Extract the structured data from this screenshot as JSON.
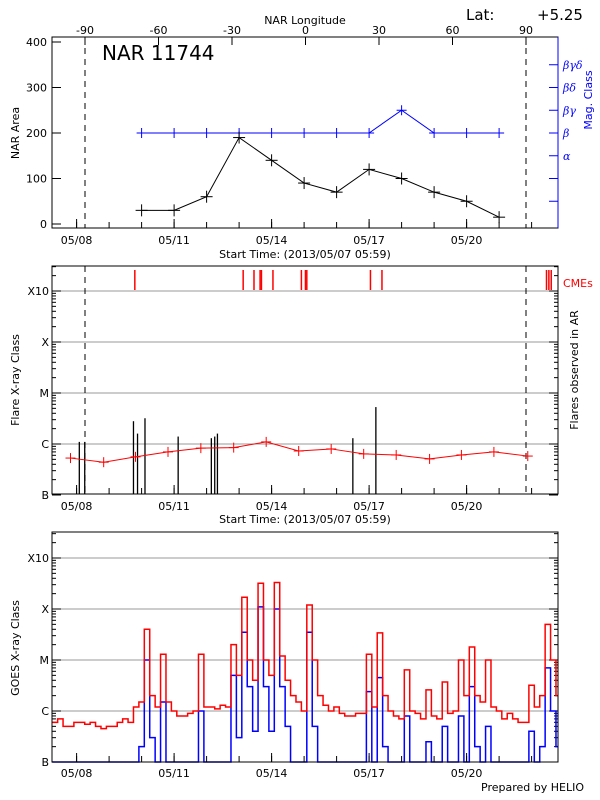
{
  "header": {
    "lat_label": "Lat:",
    "lat_value": "+5.25"
  },
  "footer": {
    "credit": "Prepared by HELIO"
  },
  "colors": {
    "area": "#000000",
    "mag_class": "#0000ff",
    "cme": "#ff0000",
    "background": "#ff0000",
    "flare": "#000000",
    "goes_long": "#ff0000",
    "goes_short": "#0000ff",
    "grid": "#999999"
  },
  "chart_data": [
    {
      "type": "line",
      "title": "NAR 11744",
      "xlabel": "Start Time: (2013/05/07 05:59)",
      "x_top_label": "NAR Longitude",
      "x_top_ticks": [
        "-90",
        "-60",
        "-30",
        "0",
        "30",
        "60",
        "90"
      ],
      "limb_longitudes": [
        -90,
        90
      ],
      "xticks": [
        "05/08",
        "05/11",
        "05/14",
        "05/17",
        "05/20"
      ],
      "ylabel": "NAR Area",
      "ylim": [
        0,
        400
      ],
      "yticks": [
        "0",
        "100",
        "200",
        "300",
        "400"
      ],
      "y2label": "Mag. Class",
      "y2ticks": [
        "α",
        "β",
        "βγ",
        "βδ",
        "βγδ"
      ],
      "dates": [
        "2013-05-10 00:00",
        "2013-05-11 00:00",
        "2013-05-12 00:00",
        "2013-05-13 00:00",
        "2013-05-14 00:00",
        "2013-05-15 00:00",
        "2013-05-16 00:00",
        "2013-05-17 00:00",
        "2013-05-18 00:00",
        "2013-05-19 00:00",
        "2013-05-20 00:00",
        "2013-05-21 00:00"
      ],
      "area": [
        30,
        30,
        60,
        190,
        140,
        90,
        70,
        120,
        100,
        70,
        50,
        15
      ],
      "mag_class": [
        "β",
        "β",
        "β",
        "β",
        "β",
        "β",
        "β",
        "β",
        "βγ",
        "β",
        "β",
        "β"
      ]
    },
    {
      "type": "bar",
      "xlabel": "Start Time: (2013/05/07 05:59)",
      "xticks": [
        "05/08",
        "05/11",
        "05/14",
        "05/17",
        "05/20"
      ],
      "ylabel": "Flare X-ray Class",
      "yticks": [
        "B",
        "C",
        "M",
        "X",
        "X10"
      ],
      "y2label": "Flares observed in AR",
      "cme_label": "CMEs",
      "scale": "log",
      "flares": [
        {
          "time": "2013-05-08 02:00",
          "class": "C1.1"
        },
        {
          "time": "2013-05-08 06:00",
          "class": "C1.1"
        },
        {
          "time": "2013-05-09 18:00",
          "class": "C2.8"
        },
        {
          "time": "2013-05-09 21:00",
          "class": "C1.6"
        },
        {
          "time": "2013-05-10 02:30",
          "class": "C3.2"
        },
        {
          "time": "2013-05-11 03:00",
          "class": "C1.4"
        },
        {
          "time": "2013-05-12 03:30",
          "class": "C1.3"
        },
        {
          "time": "2013-05-12 06:00",
          "class": "C1.4"
        },
        {
          "time": "2013-05-12 08:00",
          "class": "C1.6"
        },
        {
          "time": "2013-05-16 12:00",
          "class": "C1.3"
        },
        {
          "time": "2013-05-17 05:00",
          "class": "C5.3"
        }
      ],
      "cmes": [
        "2013-05-09 19:00",
        "2013-05-13 03:00",
        "2013-05-13 11:00",
        "2013-05-13 15:30",
        "2013-05-13 16:30",
        "2013-05-14 01:00",
        "2013-05-14 22:00",
        "2013-05-15 01:00",
        "2013-05-15 02:00",
        "2013-05-17 01:00",
        "2013-05-17 09:30",
        "2013-05-22 11:00",
        "2013-05-22 12:45",
        "2013-05-22 14:30"
      ],
      "background": [
        {
          "time": "2013-05-07 19:30",
          "class": "B5.3"
        },
        {
          "time": "2013-05-08 20:00",
          "class": "B4.4"
        },
        {
          "time": "2013-05-09 19:30",
          "class": "B5.6"
        },
        {
          "time": "2013-05-10 19:30",
          "class": "B7.0"
        },
        {
          "time": "2013-05-11 19:45",
          "class": "B8.3"
        },
        {
          "time": "2013-05-12 20:00",
          "class": "B8.5"
        },
        {
          "time": "2013-05-13 20:00",
          "class": "C1.1"
        },
        {
          "time": "2013-05-14 20:00",
          "class": "B7.3"
        },
        {
          "time": "2013-05-15 20:00",
          "class": "B8.0"
        },
        {
          "time": "2013-05-16 20:00",
          "class": "B6.4"
        },
        {
          "time": "2013-05-17 20:00",
          "class": "B6.1"
        },
        {
          "time": "2013-05-18 20:40",
          "class": "B5.1"
        },
        {
          "time": "2013-05-19 20:10",
          "class": "B6.1"
        },
        {
          "time": "2013-05-20 20:10",
          "class": "B7.0"
        },
        {
          "time": "2013-05-21 21:10",
          "class": "B5.8"
        }
      ]
    },
    {
      "type": "line",
      "ylabel": "GOES X-ray Class",
      "yticks": [
        "B",
        "C",
        "M",
        "X",
        "X10"
      ],
      "xticks": [
        "05/08",
        "05/11",
        "05/14",
        "05/17",
        "05/20"
      ],
      "scale": "log",
      "start": "2013-05-07 06:00",
      "step_hours": 4,
      "goes_long": [
        6e-07,
        7e-07,
        5e-07,
        5e-07,
        6e-07,
        6e-07,
        5.5e-07,
        6e-07,
        5e-07,
        4.5e-07,
        5e-07,
        5e-07,
        6e-07,
        7e-07,
        6e-07,
        1.2e-06,
        1.5e-06,
        4e-05,
        2e-06,
        1.2e-06,
        1.3e-05,
        1.5e-06,
        1e-06,
        8e-07,
        8e-07,
        9e-07,
        1e-06,
        1.3e-05,
        1.2e-06,
        1.2e-06,
        1.1e-06,
        1.3e-06,
        1.2e-06,
        2e-05,
        5e-06,
        0.00017,
        1e-05,
        4e-06,
        0.00032,
        1e-05,
        5e-06,
        0.00033,
        1.2e-05,
        4e-06,
        2e-06,
        1.5e-06,
        1e-06,
        0.00012,
        1e-05,
        2e-06,
        1.3e-06,
        1e-06,
        1.2e-06,
        9e-07,
        8e-07,
        8e-07,
        9e-07,
        9e-07,
        1.3e-05,
        1.2e-06,
        3.4e-05,
        2e-06,
        1e-06,
        8e-07,
        7e-07,
        6.4e-06,
        1e-06,
        9e-07,
        7e-07,
        2.6e-06,
        8e-07,
        7e-07,
        3.7e-06,
        9e-07,
        1e-06,
        1e-05,
        2e-06,
        1.8e-05,
        2e-06,
        1.5e-06,
        1e-05,
        1.2e-06,
        1e-06,
        7e-07,
        9e-07,
        7e-07,
        6e-07,
        6e-07,
        3.2e-06,
        1.2e-06,
        2e-06,
        5e-05,
        1e-05,
        2e-06
      ],
      "goes_short": [
        5e-08,
        5e-08,
        5e-08,
        5e-08,
        5e-08,
        5e-08,
        5e-08,
        5e-08,
        5e-08,
        5e-08,
        5e-08,
        5e-08,
        5e-08,
        5e-08,
        5e-08,
        5e-08,
        2e-07,
        1e-05,
        3e-07,
        5e-08,
        1.5e-06,
        5e-08,
        5e-08,
        5e-08,
        5e-08,
        5e-08,
        5e-08,
        1e-06,
        5e-08,
        5e-08,
        5e-08,
        5e-08,
        5e-08,
        5e-06,
        3e-07,
        3.5e-05,
        3e-06,
        4e-07,
        0.00011,
        3e-06,
        4e-07,
        0.0001,
        3e-06,
        5e-07,
        5e-08,
        5e-08,
        5e-08,
        3.5e-05,
        5e-07,
        5e-08,
        5e-08,
        5e-08,
        5e-08,
        5e-08,
        5e-08,
        5e-08,
        5e-08,
        5e-08,
        2.4e-06,
        5e-08,
        4.5e-06,
        2e-07,
        5e-08,
        5e-08,
        5e-08,
        8e-07,
        5e-08,
        5e-08,
        5e-08,
        2.5e-07,
        5e-08,
        5e-08,
        5e-07,
        5e-08,
        5e-08,
        8e-07,
        5e-08,
        3e-06,
        2e-07,
        5e-08,
        5e-07,
        5e-08,
        5e-08,
        5e-08,
        5e-08,
        5e-08,
        5e-08,
        5e-08,
        4e-07,
        5e-08,
        2e-07,
        7e-06,
        1e-06,
        2e-07
      ]
    }
  ]
}
